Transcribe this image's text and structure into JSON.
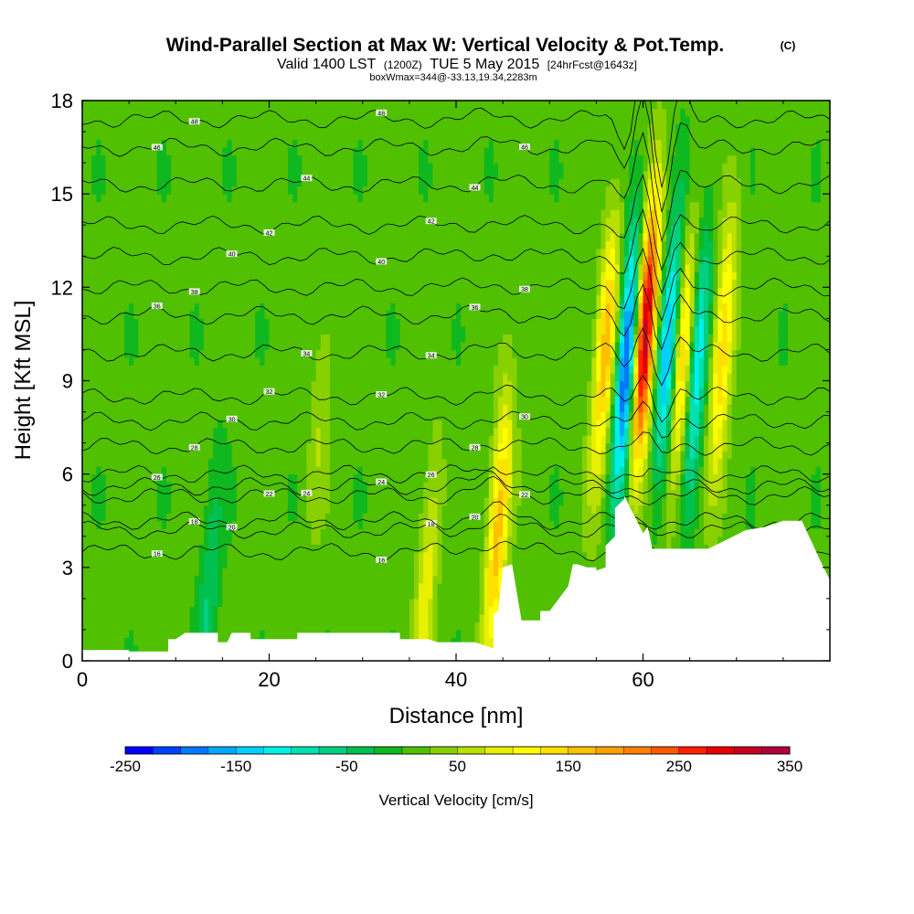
{
  "title": {
    "main": "Wind-Parallel Section at Max W: Vertical Velocity & Pot.Temp.",
    "copyright": "(C)",
    "valid_prefix": "Valid 1400 LST",
    "valid_z": "(1200Z)",
    "valid_date": "TUE 5 May 2015",
    "forecast": "[24hrFcst@1643z]",
    "info": "boxWmax=344@-33.13,19.34,2283m"
  },
  "chart_data": {
    "type": "heatmap",
    "xlabel": "Distance [nm]",
    "ylabel": "Height [Kft MSL]",
    "xlim": [
      0,
      80
    ],
    "ylim": [
      0,
      18
    ],
    "x_ticks": [
      "0",
      "20",
      "40",
      "60"
    ],
    "x_tick_values": [
      0,
      20,
      40,
      60
    ],
    "y_ticks": [
      "0",
      "3",
      "6",
      "9",
      "12",
      "15",
      "18"
    ],
    "y_tick_values": [
      0,
      3,
      6,
      9,
      12,
      15,
      18
    ],
    "colorbar": {
      "label": "Vertical Velocity [cm/s]",
      "min": -250,
      "max": 350,
      "step": 25,
      "tick_labels": [
        "-250",
        "-150",
        "-50",
        "50",
        "150",
        "250",
        "350"
      ],
      "tick_values": [
        -250,
        -150,
        -50,
        50,
        150,
        250,
        350
      ],
      "colors": [
        "#0000ff",
        "#0040ff",
        "#0078ff",
        "#00a8ff",
        "#00d0ff",
        "#00f0e8",
        "#00e0b0",
        "#00d080",
        "#00c050",
        "#10b820",
        "#50c000",
        "#88d000",
        "#b8e000",
        "#e8f000",
        "#ffff00",
        "#ffe000",
        "#ffc000",
        "#ffa000",
        "#ff8000",
        "#ff5800",
        "#ff2000",
        "#e80000",
        "#c80020",
        "#b00040"
      ]
    },
    "terrain_kft": [
      [
        0,
        0.35
      ],
      [
        5,
        0.35
      ],
      [
        5,
        0.3
      ],
      [
        8,
        0.3
      ],
      [
        9.2,
        0.3
      ],
      [
        9.2,
        0.7
      ],
      [
        10,
        0.7
      ],
      [
        11,
        0.9
      ],
      [
        14.5,
        0.9
      ],
      [
        14.5,
        0.6
      ],
      [
        15.5,
        0.6
      ],
      [
        16,
        0.9
      ],
      [
        18,
        0.9
      ],
      [
        18,
        0.7
      ],
      [
        23,
        0.7
      ],
      [
        23,
        0.9
      ],
      [
        30,
        0.9
      ],
      [
        30,
        0.9
      ],
      [
        34,
        0.9
      ],
      [
        34,
        0.7
      ],
      [
        37,
        0.7
      ],
      [
        38,
        0.6
      ],
      [
        42,
        0.6
      ],
      [
        44,
        0.4
      ],
      [
        44,
        1.5
      ],
      [
        44.5,
        1.6
      ],
      [
        45,
        3.0
      ],
      [
        46,
        3.1
      ],
      [
        47,
        1.3
      ],
      [
        48,
        1.3
      ],
      [
        49,
        1.3
      ],
      [
        49,
        1.6
      ],
      [
        50,
        1.6
      ],
      [
        51,
        2.0
      ],
      [
        52,
        2.4
      ],
      [
        52.5,
        3.1
      ],
      [
        53,
        3.1
      ],
      [
        54,
        3.0
      ],
      [
        55,
        3.0
      ],
      [
        55,
        2.9
      ],
      [
        56,
        3.0
      ],
      [
        56,
        3.7
      ],
      [
        57,
        4.0
      ],
      [
        57,
        4.9
      ],
      [
        58,
        5.2
      ],
      [
        58,
        5.3
      ],
      [
        58.5,
        5.0
      ],
      [
        59,
        4.7
      ],
      [
        60,
        4.1
      ],
      [
        60.5,
        4.3
      ],
      [
        61,
        3.6
      ],
      [
        63,
        3.6
      ],
      [
        65,
        3.6
      ],
      [
        67,
        3.6
      ],
      [
        69,
        3.9
      ],
      [
        71,
        4.2
      ],
      [
        73,
        4.3
      ],
      [
        75,
        4.5
      ],
      [
        77,
        4.5
      ],
      [
        79,
        3.2
      ],
      [
        80,
        2.6
      ]
    ],
    "theta_contours": [
      {
        "label": "16",
        "base_kft": 3.5
      },
      {
        "label": "18",
        "base_kft": 4.2
      },
      {
        "label": "20",
        "base_kft": 4.5
      },
      {
        "label": "22",
        "base_kft": 5.3
      },
      {
        "label": "24",
        "base_kft": 5.6
      },
      {
        "label": "26",
        "base_kft": 6.0
      },
      {
        "label": "28",
        "base_kft": 6.9
      },
      {
        "label": "30",
        "base_kft": 7.7
      },
      {
        "label": "32",
        "base_kft": 8.5
      },
      {
        "label": "34",
        "base_kft": 9.9
      },
      {
        "label": "36",
        "base_kft": 11.1
      },
      {
        "label": "38",
        "base_kft": 12.0
      },
      {
        "label": "40",
        "base_kft": 13.0
      },
      {
        "label": "42",
        "base_kft": 14.0
      },
      {
        "label": "44",
        "base_kft": 15.3
      },
      {
        "label": "46",
        "base_kft": 16.5
      },
      {
        "label": "48",
        "base_kft": 17.4
      }
    ],
    "velocity_features": [
      {
        "x_nm": 60.2,
        "z_kft": 10.5,
        "w_cms": 330
      },
      {
        "x_nm": 58.3,
        "z_kft": 9.6,
        "w_cms": -240
      },
      {
        "x_nm": 62.7,
        "z_kft": 10.0,
        "w_cms": -170
      },
      {
        "x_nm": 65.7,
        "z_kft": 9.5,
        "w_cms": -150
      },
      {
        "x_nm": 64.3,
        "z_kft": 9.6,
        "w_cms": 160
      },
      {
        "x_nm": 56.0,
        "z_kft": 10.0,
        "w_cms": 160
      },
      {
        "x_nm": 68.5,
        "z_kft": 10.0,
        "w_cms": 140
      },
      {
        "x_nm": 44.5,
        "z_kft": 4.3,
        "w_cms": 160
      },
      {
        "x_nm": 36.8,
        "z_kft": 2.5,
        "w_cms": 80
      },
      {
        "x_nm": 13.5,
        "z_kft": 2.0,
        "w_cms": -60
      },
      {
        "x_nm": 25.5,
        "z_kft": 8.0,
        "w_cms": 40
      }
    ]
  }
}
